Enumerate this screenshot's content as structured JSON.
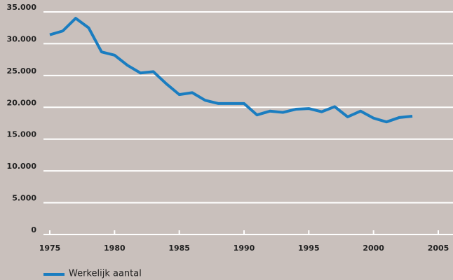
{
  "chart_data": {
    "type": "line",
    "x": [
      1975,
      1976,
      1977,
      1978,
      1979,
      1980,
      1981,
      1982,
      1983,
      1984,
      1985,
      1986,
      1987,
      1988,
      1989,
      1990,
      1991,
      1992,
      1993,
      1994,
      1995,
      1996,
      1997,
      1998,
      1999,
      2000,
      2001,
      2002,
      2003
    ],
    "series": [
      {
        "name": "Werkelijk aantal",
        "color": "#1a7dc0",
        "values": [
          31400,
          32000,
          34000,
          32500,
          28700,
          28200,
          26600,
          25400,
          25600,
          23700,
          22000,
          22300,
          21100,
          20600,
          20600,
          20600,
          18800,
          19400,
          19200,
          19700,
          19800,
          19300,
          20100,
          18500,
          19400,
          18300,
          17700,
          18400,
          18600
        ]
      }
    ],
    "xlim": [
      1975,
      2005
    ],
    "xticks": [
      1975,
      1980,
      1985,
      1990,
      1995,
      2000,
      2005
    ],
    "ylim": [
      0,
      35000
    ],
    "yticks": [
      0,
      {
        "value": 5000,
        "label": "5.000"
      },
      {
        "value": 10000,
        "label": "10.000"
      },
      {
        "value": 15000,
        "label": "15.000"
      },
      {
        "value": 20000,
        "label": "20.000"
      },
      {
        "value": 25000,
        "label": "25.000"
      },
      {
        "value": 30000,
        "label": "30.000"
      },
      {
        "value": 35000,
        "label": "35.000"
      }
    ],
    "grid": true
  }
}
